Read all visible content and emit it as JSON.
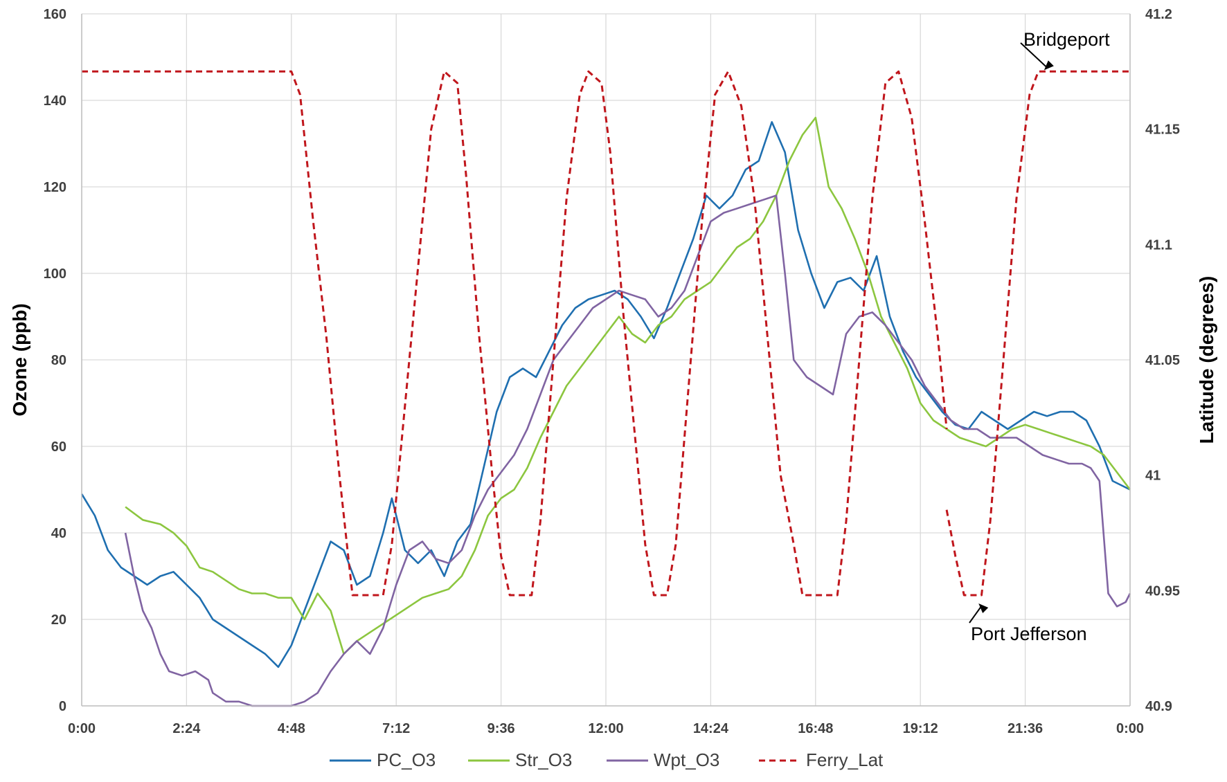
{
  "chart_data": {
    "type": "line",
    "title": "",
    "xlabel": "",
    "ylabel": "Ozone (ppb)",
    "ylabel_right": "Latitude (degrees)",
    "x_ticks": [
      "0:00",
      "2:24",
      "4:48",
      "7:12",
      "9:36",
      "12:00",
      "14:24",
      "16:48",
      "19:12",
      "21:36",
      "0:00"
    ],
    "xlim_hours": [
      0,
      24
    ],
    "ylim": [
      0,
      160
    ],
    "y_ticks": [
      "0",
      "20",
      "40",
      "60",
      "80",
      "100",
      "120",
      "140",
      "160"
    ],
    "ylim_right": [
      40.9,
      41.2
    ],
    "y_ticks_right": [
      "40.9",
      "40.95",
      "41",
      "41.05",
      "41.1",
      "41.15",
      "41.2"
    ],
    "grid": true,
    "legend_position": "bottom",
    "series": [
      {
        "name": "PC_O3",
        "axis": "left",
        "color": "#1f6fb0",
        "style": "solid",
        "points": [
          [
            0,
            49
          ],
          [
            0.3,
            44
          ],
          [
            0.6,
            36
          ],
          [
            0.9,
            32
          ],
          [
            1.2,
            30
          ],
          [
            1.5,
            28
          ],
          [
            1.8,
            30
          ],
          [
            2.1,
            31
          ],
          [
            2.4,
            28
          ],
          [
            2.7,
            25
          ],
          [
            3.0,
            20
          ],
          [
            3.3,
            18
          ],
          [
            3.6,
            16
          ],
          [
            3.9,
            14
          ],
          [
            4.2,
            12
          ],
          [
            4.5,
            9
          ],
          [
            4.8,
            14
          ],
          [
            5.1,
            22
          ],
          [
            5.4,
            30
          ],
          [
            5.7,
            38
          ],
          [
            6.0,
            36
          ],
          [
            6.3,
            28
          ],
          [
            6.6,
            30
          ],
          [
            6.9,
            40
          ],
          [
            7.1,
            48
          ],
          [
            7.4,
            36
          ],
          [
            7.7,
            33
          ],
          [
            8.0,
            36
          ],
          [
            8.3,
            30
          ],
          [
            8.6,
            38
          ],
          [
            8.9,
            42
          ],
          [
            9.2,
            55
          ],
          [
            9.5,
            68
          ],
          [
            9.8,
            76
          ],
          [
            10.1,
            78
          ],
          [
            10.4,
            76
          ],
          [
            10.7,
            82
          ],
          [
            11.0,
            88
          ],
          [
            11.3,
            92
          ],
          [
            11.6,
            94
          ],
          [
            11.9,
            95
          ],
          [
            12.2,
            96
          ],
          [
            12.5,
            94
          ],
          [
            12.8,
            90
          ],
          [
            13.1,
            85
          ],
          [
            13.4,
            92
          ],
          [
            13.7,
            100
          ],
          [
            14.0,
            108
          ],
          [
            14.3,
            118
          ],
          [
            14.6,
            115
          ],
          [
            14.9,
            118
          ],
          [
            15.2,
            124
          ],
          [
            15.5,
            126
          ],
          [
            15.8,
            135
          ],
          [
            16.1,
            128
          ],
          [
            16.4,
            110
          ],
          [
            16.7,
            100
          ],
          [
            17.0,
            92
          ],
          [
            17.3,
            98
          ],
          [
            17.6,
            99
          ],
          [
            17.9,
            96
          ],
          [
            18.2,
            104
          ],
          [
            18.5,
            90
          ],
          [
            18.8,
            82
          ],
          [
            19.1,
            76
          ],
          [
            19.4,
            72
          ],
          [
            19.7,
            68
          ],
          [
            20.0,
            65
          ],
          [
            20.3,
            64
          ],
          [
            20.6,
            68
          ],
          [
            20.9,
            66
          ],
          [
            21.2,
            64
          ],
          [
            21.5,
            66
          ],
          [
            21.8,
            68
          ],
          [
            22.1,
            67
          ],
          [
            22.4,
            68
          ],
          [
            22.7,
            68
          ],
          [
            23.0,
            66
          ],
          [
            23.3,
            60
          ],
          [
            23.6,
            52
          ],
          [
            24.0,
            50
          ]
        ]
      },
      {
        "name": "Str_O3",
        "axis": "left",
        "color": "#8cc63f",
        "style": "solid",
        "points": [
          [
            1.0,
            46
          ],
          [
            1.4,
            43
          ],
          [
            1.8,
            42
          ],
          [
            2.1,
            40
          ],
          [
            2.4,
            37
          ],
          [
            2.7,
            32
          ],
          [
            3.0,
            31
          ],
          [
            3.3,
            29
          ],
          [
            3.6,
            27
          ],
          [
            3.9,
            26
          ],
          [
            4.2,
            26
          ],
          [
            4.5,
            25
          ],
          [
            4.8,
            25
          ],
          [
            5.1,
            20
          ],
          [
            5.4,
            26
          ],
          [
            5.7,
            22
          ],
          [
            6.0,
            12
          ],
          [
            6.3,
            15
          ],
          [
            6.6,
            17
          ],
          [
            6.9,
            19
          ],
          [
            7.2,
            21
          ],
          [
            7.5,
            23
          ],
          [
            7.8,
            25
          ],
          [
            8.1,
            26
          ],
          [
            8.4,
            27
          ],
          [
            8.7,
            30
          ],
          [
            9.0,
            36
          ],
          [
            9.3,
            44
          ],
          [
            9.6,
            48
          ],
          [
            9.9,
            50
          ],
          [
            10.2,
            55
          ],
          [
            10.5,
            62
          ],
          [
            10.8,
            68
          ],
          [
            11.1,
            74
          ],
          [
            11.4,
            78
          ],
          [
            11.7,
            82
          ],
          [
            12.0,
            86
          ],
          [
            12.3,
            90
          ],
          [
            12.6,
            86
          ],
          [
            12.9,
            84
          ],
          [
            13.2,
            88
          ],
          [
            13.5,
            90
          ],
          [
            13.8,
            94
          ],
          [
            14.1,
            96
          ],
          [
            14.4,
            98
          ],
          [
            14.7,
            102
          ],
          [
            15.0,
            106
          ],
          [
            15.3,
            108
          ],
          [
            15.6,
            112
          ],
          [
            15.9,
            118
          ],
          [
            16.2,
            126
          ],
          [
            16.5,
            132
          ],
          [
            16.8,
            136
          ],
          [
            17.1,
            120
          ],
          [
            17.4,
            115
          ],
          [
            17.7,
            108
          ],
          [
            18.0,
            100
          ],
          [
            18.3,
            90
          ],
          [
            18.6,
            84
          ],
          [
            18.9,
            78
          ],
          [
            19.2,
            70
          ],
          [
            19.5,
            66
          ],
          [
            19.8,
            64
          ],
          [
            20.1,
            62
          ],
          [
            20.4,
            61
          ],
          [
            20.7,
            60
          ],
          [
            21.0,
            62
          ],
          [
            21.3,
            64
          ],
          [
            21.6,
            65
          ],
          [
            21.9,
            64
          ],
          [
            22.2,
            63
          ],
          [
            22.5,
            62
          ],
          [
            22.8,
            61
          ],
          [
            23.1,
            60
          ],
          [
            23.4,
            58
          ],
          [
            23.7,
            54
          ],
          [
            24.0,
            50
          ]
        ]
      },
      {
        "name": "Wpt_O3",
        "axis": "left",
        "color": "#8064a2",
        "style": "solid",
        "points": [
          [
            1.0,
            40
          ],
          [
            1.2,
            30
          ],
          [
            1.4,
            22
          ],
          [
            1.6,
            18
          ],
          [
            1.8,
            12
          ],
          [
            2.0,
            8
          ],
          [
            2.3,
            7
          ],
          [
            2.6,
            8
          ],
          [
            2.9,
            6
          ],
          [
            3.0,
            3
          ],
          [
            3.3,
            1
          ],
          [
            3.6,
            1
          ],
          [
            3.9,
            0
          ],
          [
            4.2,
            0
          ],
          [
            4.5,
            0
          ],
          [
            4.8,
            0
          ],
          [
            5.1,
            1
          ],
          [
            5.4,
            3
          ],
          [
            5.7,
            8
          ],
          [
            6.0,
            12
          ],
          [
            6.3,
            15
          ],
          [
            6.6,
            12
          ],
          [
            6.9,
            18
          ],
          [
            7.2,
            28
          ],
          [
            7.5,
            36
          ],
          [
            7.8,
            38
          ],
          [
            8.1,
            34
          ],
          [
            8.4,
            33
          ],
          [
            8.7,
            36
          ],
          [
            9.0,
            44
          ],
          [
            9.3,
            50
          ],
          [
            9.6,
            54
          ],
          [
            9.9,
            58
          ],
          [
            10.2,
            64
          ],
          [
            10.5,
            72
          ],
          [
            10.8,
            80
          ],
          [
            11.1,
            84
          ],
          [
            11.4,
            88
          ],
          [
            11.7,
            92
          ],
          [
            12.0,
            94
          ],
          [
            12.3,
            96
          ],
          [
            12.6,
            95
          ],
          [
            12.9,
            94
          ],
          [
            13.2,
            90
          ],
          [
            13.5,
            92
          ],
          [
            13.8,
            96
          ],
          [
            14.1,
            104
          ],
          [
            14.4,
            112
          ],
          [
            14.7,
            114
          ],
          [
            15.0,
            115
          ],
          [
            15.3,
            116
          ],
          [
            15.6,
            117
          ],
          [
            15.9,
            118
          ],
          [
            16.1,
            100
          ],
          [
            16.3,
            80
          ],
          [
            16.6,
            76
          ],
          [
            16.9,
            74
          ],
          [
            17.2,
            72
          ],
          [
            17.5,
            86
          ],
          [
            17.8,
            90
          ],
          [
            18.1,
            91
          ],
          [
            18.4,
            88
          ],
          [
            18.7,
            84
          ],
          [
            19.0,
            80
          ],
          [
            19.3,
            74
          ],
          [
            19.6,
            70
          ],
          [
            19.9,
            66
          ],
          [
            20.2,
            64
          ],
          [
            20.5,
            64
          ],
          [
            20.8,
            62
          ],
          [
            21.1,
            62
          ],
          [
            21.4,
            62
          ],
          [
            21.7,
            60
          ],
          [
            22.0,
            58
          ],
          [
            22.3,
            57
          ],
          [
            22.6,
            56
          ],
          [
            22.9,
            56
          ],
          [
            23.1,
            55
          ],
          [
            23.3,
            52
          ],
          [
            23.5,
            26
          ],
          [
            23.7,
            23
          ],
          [
            23.9,
            24
          ],
          [
            24.0,
            26
          ]
        ]
      },
      {
        "name": "Ferry_Lat",
        "axis": "right",
        "color": "#c0161c",
        "style": "dashed",
        "segments": [
          [
            [
              0,
              41.175
            ],
            [
              4.8,
              41.175
            ],
            [
              5.0,
              41.165
            ],
            [
              5.3,
              41.11
            ],
            [
              5.6,
              41.06
            ],
            [
              5.9,
              41.0
            ],
            [
              6.1,
              40.965
            ],
            [
              6.2,
              40.948
            ],
            [
              6.9,
              40.948
            ],
            [
              7.1,
              40.97
            ],
            [
              7.4,
              41.03
            ],
            [
              7.7,
              41.09
            ],
            [
              8.0,
              41.15
            ],
            [
              8.3,
              41.175
            ],
            [
              8.6,
              41.17
            ],
            [
              8.8,
              41.13
            ],
            [
              9.1,
              41.06
            ],
            [
              9.4,
              41.0
            ],
            [
              9.6,
              40.965
            ],
            [
              9.8,
              40.948
            ],
            [
              10.3,
              40.948
            ],
            [
              10.5,
              40.98
            ],
            [
              10.8,
              41.05
            ],
            [
              11.1,
              41.12
            ],
            [
              11.4,
              41.165
            ],
            [
              11.6,
              41.175
            ],
            [
              11.9,
              41.17
            ],
            [
              12.1,
              41.14
            ],
            [
              12.4,
              41.07
            ],
            [
              12.7,
              41.01
            ],
            [
              12.9,
              40.97
            ],
            [
              13.1,
              40.948
            ],
            [
              13.4,
              40.948
            ],
            [
              13.6,
              40.97
            ],
            [
              13.9,
              41.04
            ],
            [
              14.2,
              41.11
            ],
            [
              14.5,
              41.165
            ],
            [
              14.8,
              41.175
            ],
            [
              15.1,
              41.16
            ],
            [
              15.4,
              41.12
            ],
            [
              15.7,
              41.06
            ],
            [
              16.0,
              41.0
            ],
            [
              16.3,
              40.97
            ],
            [
              16.5,
              40.948
            ],
            [
              17.3,
              40.948
            ],
            [
              17.5,
              40.98
            ],
            [
              17.8,
              41.05
            ],
            [
              18.1,
              41.12
            ],
            [
              18.4,
              41.17
            ],
            [
              18.7,
              41.175
            ],
            [
              19.0,
              41.155
            ],
            [
              19.3,
              41.11
            ],
            [
              19.6,
              41.06
            ],
            [
              19.8,
              41.02
            ]
          ],
          [
            [
              19.8,
              40.985
            ],
            [
              20.0,
              40.965
            ],
            [
              20.2,
              40.948
            ],
            [
              20.6,
              40.948
            ],
            [
              20.8,
              40.98
            ],
            [
              21.1,
              41.05
            ],
            [
              21.4,
              41.12
            ],
            [
              21.7,
              41.165
            ],
            [
              21.9,
              41.175
            ],
            [
              24.0,
              41.175
            ]
          ]
        ]
      }
    ],
    "annotations": [
      {
        "text": "Bridgeport",
        "x": 22.0,
        "y_right": 41.175
      },
      {
        "text": "Port Jefferson",
        "x": 20.5,
        "y_right": 40.945
      }
    ]
  }
}
